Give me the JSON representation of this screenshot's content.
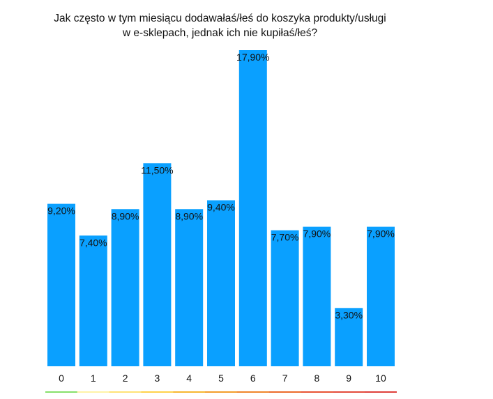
{
  "chart_data": {
    "type": "bar",
    "title_lines": [
      "Jak często w tym miesiącu dodawałaś/łeś do koszyka produkty/usługi",
      "w e-sklepach, jednak ich nie kupiłaś/łeś?"
    ],
    "categories": [
      "0",
      "1",
      "2",
      "3",
      "4",
      "5",
      "6",
      "7",
      "8",
      "9",
      "10"
    ],
    "values": [
      9.2,
      7.4,
      8.9,
      11.5,
      8.9,
      9.4,
      17.9,
      7.7,
      7.9,
      3.3,
      7.9
    ],
    "value_labels": [
      "9,20%",
      "7,40%",
      "8,90%",
      "11,50%",
      "8,90%",
      "9,40%",
      "17,90%",
      "7,70%",
      "7,90%",
      "3,30%",
      "7,90%"
    ],
    "xlabel": "",
    "ylabel": "",
    "ylim": [
      0,
      17.9
    ],
    "grid": false,
    "legend": "none",
    "bar_color": "#0aa0ff",
    "scale_colors": [
      "#86e06a",
      "#fff3a6",
      "#ffe276",
      "#ffd24a",
      "#f7b730",
      "#f39d2a",
      "#f0852a",
      "#ec6b2a",
      "#e85233",
      "#e34a3a",
      "#df3f3a"
    ]
  }
}
